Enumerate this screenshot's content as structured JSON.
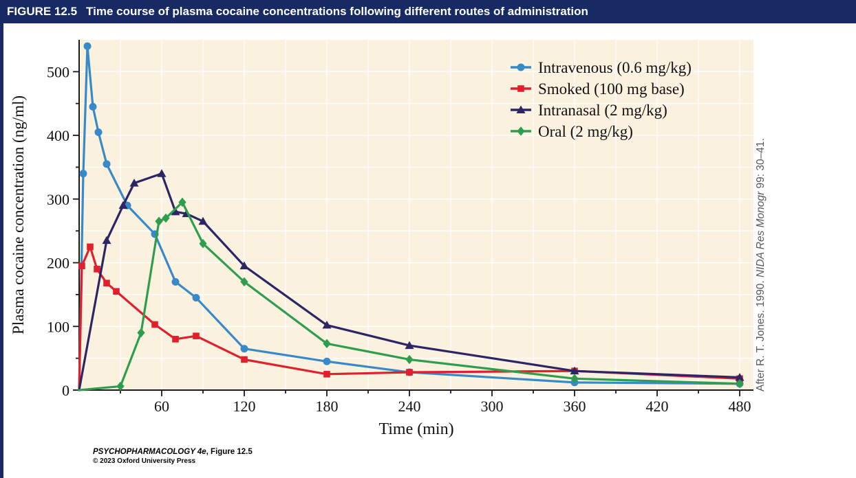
{
  "header": {
    "figure_label": "FIGURE 12.5",
    "title": "Time course of plasma cocaine concentrations following different routes of administration"
  },
  "credit_right": {
    "prefix": "After R. T. Jones. 1990. ",
    "italic": "NIDA Res Monogr",
    "suffix": " 99: 30–41."
  },
  "footer": {
    "line1_italic": "PSYCHOPHARMACOLOGY 4e",
    "line1_rest": ", Figure 12.5",
    "line2": "© 2023 Oxford University Press"
  },
  "colors": {
    "header_bg": "#172a64",
    "plot_bg": "#fbf1df",
    "grid": "#ffffff",
    "axis": "#1a1a1a",
    "tick_text": "#111111",
    "credit_text": "#595959"
  },
  "chart_data": {
    "type": "line",
    "title": "",
    "xlabel": "Time (min)",
    "ylabel": "Plasma cocaine concentration (ng/ml)",
    "xlim": [
      0,
      490
    ],
    "ylim": [
      0,
      550
    ],
    "x_ticks": [
      60,
      120,
      180,
      240,
      300,
      360,
      420,
      480
    ],
    "y_ticks": [
      0,
      100,
      200,
      300,
      400,
      500
    ],
    "x_minor_step": 30,
    "y_minor_step": 50,
    "grid": true,
    "legend_position": "top-right",
    "series": [
      {
        "name": "Intravenous (0.6 mg/kg)",
        "color": "#3789c8",
        "marker": "circle",
        "points": [
          [
            0,
            0
          ],
          [
            3,
            340
          ],
          [
            6,
            540
          ],
          [
            10,
            445
          ],
          [
            14,
            405
          ],
          [
            20,
            355
          ],
          [
            35,
            290
          ],
          [
            55,
            245
          ],
          [
            70,
            170
          ],
          [
            85,
            145
          ],
          [
            120,
            65
          ],
          [
            180,
            45
          ],
          [
            240,
            28
          ],
          [
            360,
            12
          ],
          [
            480,
            10
          ]
        ]
      },
      {
        "name": "Smoked (100 mg base)",
        "color": "#e0202d",
        "marker": "square",
        "points": [
          [
            0,
            0
          ],
          [
            2,
            195
          ],
          [
            8,
            225
          ],
          [
            13,
            190
          ],
          [
            20,
            168
          ],
          [
            27,
            155
          ],
          [
            55,
            103
          ],
          [
            70,
            80
          ],
          [
            85,
            85
          ],
          [
            120,
            48
          ],
          [
            180,
            25
          ],
          [
            240,
            28
          ],
          [
            360,
            30
          ],
          [
            480,
            18
          ]
        ]
      },
      {
        "name": "Intranasal (2 mg/kg)",
        "color": "#2c2566",
        "marker": "triangle",
        "points": [
          [
            0,
            0
          ],
          [
            20,
            235
          ],
          [
            32,
            290
          ],
          [
            40,
            325
          ],
          [
            60,
            340
          ],
          [
            70,
            280
          ],
          [
            78,
            277
          ],
          [
            90,
            265
          ],
          [
            120,
            195
          ],
          [
            180,
            102
          ],
          [
            240,
            70
          ],
          [
            360,
            30
          ],
          [
            480,
            20
          ]
        ]
      },
      {
        "name": "Oral (2 mg/kg)",
        "color": "#2e9e4e",
        "marker": "diamond",
        "points": [
          [
            0,
            0
          ],
          [
            30,
            6
          ],
          [
            45,
            90
          ],
          [
            58,
            265
          ],
          [
            63,
            270
          ],
          [
            75,
            295
          ],
          [
            90,
            230
          ],
          [
            120,
            170
          ],
          [
            180,
            73
          ],
          [
            240,
            48
          ],
          [
            360,
            18
          ],
          [
            480,
            10
          ]
        ]
      }
    ]
  }
}
